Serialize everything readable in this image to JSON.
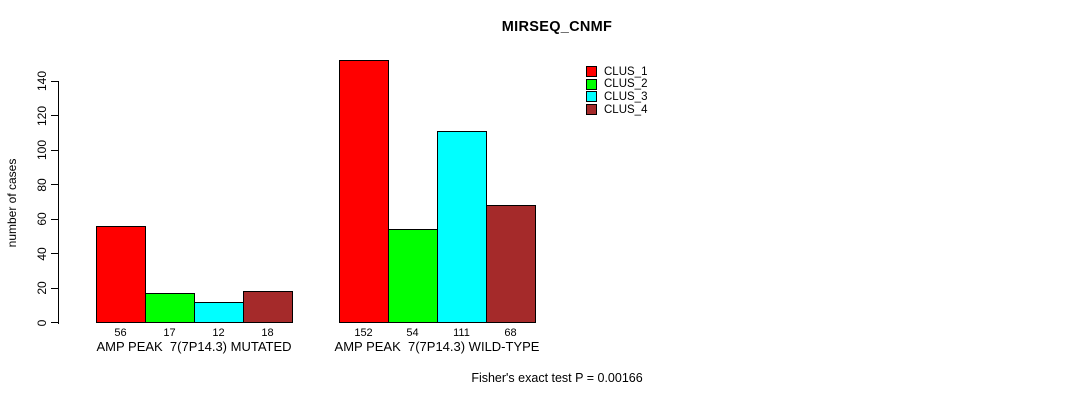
{
  "title": "MIRSEQ_CNMF",
  "caption": "Fisher's exact test P = 0.00166",
  "chart_data": {
    "type": "bar",
    "title": "MIRSEQ_CNMF",
    "xlabel": "",
    "ylabel": "number of cases",
    "ylim": [
      0,
      140
    ],
    "yticks": [
      0,
      20,
      40,
      60,
      80,
      100,
      120,
      140
    ],
    "grid": false,
    "legend_position": "top-right-inside",
    "categories": [
      "AMP PEAK  7(7P14.3) MUTATED",
      "AMP PEAK  7(7P14.3) WILD-TYPE"
    ],
    "series": [
      {
        "name": "CLUS_1",
        "color": "#FF0000",
        "values": [
          56,
          152
        ]
      },
      {
        "name": "CLUS_2",
        "color": "#00FF00",
        "values": [
          17,
          54
        ]
      },
      {
        "name": "CLUS_3",
        "color": "#00FFFF",
        "values": [
          12,
          111
        ]
      },
      {
        "name": "CLUS_4",
        "color": "#A52A2A",
        "values": [
          18,
          68
        ]
      }
    ],
    "bar_value_labels": [
      [
        56,
        17,
        12,
        18
      ],
      [
        152,
        54,
        111,
        68
      ]
    ],
    "annotation": "Fisher's exact test P = 0.00166"
  }
}
